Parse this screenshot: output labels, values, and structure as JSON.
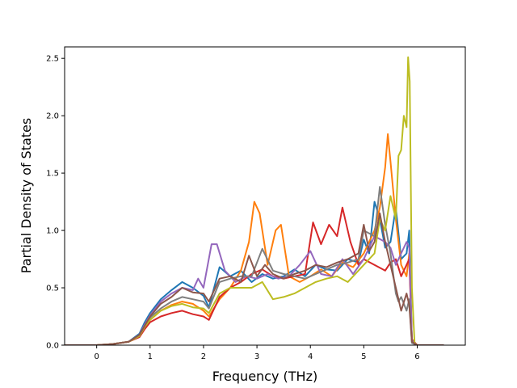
{
  "chart_data": {
    "type": "line",
    "title": "",
    "xlabel": "Frequency (THz)",
    "ylabel": "Partial Density of States",
    "xlim": [
      -0.6,
      6.9
    ],
    "ylim": [
      0.0,
      2.6
    ],
    "xticks": [
      "0",
      "1",
      "2",
      "3",
      "4",
      "5",
      "6"
    ],
    "xtick_values": [
      0,
      1,
      2,
      3,
      4,
      5,
      6
    ],
    "yticks": [
      "0.0",
      "0.5",
      "1.0",
      "1.5",
      "2.0",
      "2.5"
    ],
    "ytick_values": [
      0.0,
      0.5,
      1.0,
      1.5,
      2.0,
      2.5
    ],
    "grid": false,
    "legend": "none",
    "series": [
      {
        "color": "#1f77b4",
        "x": [
          -0.6,
          0.0,
          0.3,
          0.6,
          0.8,
          0.9,
          1.0,
          1.2,
          1.4,
          1.6,
          1.8,
          2.0,
          2.1,
          2.3,
          2.5,
          2.7,
          2.9,
          3.1,
          3.3,
          3.5,
          3.7,
          3.9,
          4.1,
          4.3,
          4.5,
          4.7,
          4.9,
          5.0,
          5.1,
          5.2,
          5.3,
          5.4,
          5.5,
          5.6,
          5.7,
          5.8,
          5.85,
          5.9,
          6.0,
          6.2,
          6.5
        ],
        "y": [
          0.0,
          0.0,
          0.01,
          0.03,
          0.1,
          0.2,
          0.28,
          0.4,
          0.48,
          0.55,
          0.5,
          0.43,
          0.33,
          0.68,
          0.6,
          0.65,
          0.55,
          0.62,
          0.58,
          0.6,
          0.66,
          0.6,
          0.7,
          0.66,
          0.65,
          0.75,
          0.72,
          0.92,
          0.8,
          1.25,
          1.1,
          0.85,
          0.9,
          1.2,
          0.75,
          0.8,
          1.0,
          0.02,
          0.0,
          0.0,
          0.0
        ]
      },
      {
        "color": "#ff7f0e",
        "x": [
          -0.6,
          0.0,
          0.3,
          0.6,
          0.8,
          0.9,
          1.0,
          1.2,
          1.4,
          1.6,
          1.8,
          2.0,
          2.1,
          2.3,
          2.5,
          2.7,
          2.85,
          2.95,
          3.05,
          3.2,
          3.35,
          3.45,
          3.6,
          3.8,
          4.0,
          4.2,
          4.4,
          4.6,
          4.8,
          5.0,
          5.2,
          5.3,
          5.4,
          5.45,
          5.5,
          5.6,
          5.7,
          5.8,
          5.85,
          5.9,
          6.0,
          6.2,
          6.5
        ],
        "y": [
          0.0,
          0.0,
          0.01,
          0.03,
          0.08,
          0.15,
          0.22,
          0.3,
          0.35,
          0.38,
          0.36,
          0.3,
          0.25,
          0.4,
          0.5,
          0.65,
          0.9,
          1.25,
          1.15,
          0.7,
          1.0,
          1.05,
          0.6,
          0.55,
          0.6,
          0.66,
          0.6,
          0.72,
          0.68,
          0.8,
          1.0,
          1.2,
          1.55,
          1.84,
          1.6,
          1.1,
          0.7,
          0.6,
          0.8,
          0.05,
          0.0,
          0.0,
          0.0
        ]
      },
      {
        "color": "#d62728",
        "x": [
          -0.6,
          0.0,
          0.3,
          0.6,
          0.8,
          0.9,
          1.0,
          1.2,
          1.4,
          1.6,
          1.8,
          2.0,
          2.1,
          2.3,
          2.5,
          2.7,
          2.9,
          3.1,
          3.3,
          3.5,
          3.7,
          3.9,
          4.05,
          4.2,
          4.35,
          4.5,
          4.6,
          4.75,
          4.9,
          5.0,
          5.2,
          5.4,
          5.5,
          5.6,
          5.7,
          5.8,
          5.85,
          5.9,
          6.0,
          6.2,
          6.5
        ],
        "y": [
          0.0,
          0.0,
          0.01,
          0.03,
          0.07,
          0.14,
          0.2,
          0.25,
          0.28,
          0.3,
          0.27,
          0.25,
          0.22,
          0.42,
          0.5,
          0.55,
          0.62,
          0.66,
          0.6,
          0.58,
          0.6,
          0.62,
          1.07,
          0.88,
          1.05,
          0.95,
          1.2,
          0.9,
          0.7,
          0.75,
          0.7,
          0.65,
          0.72,
          0.75,
          0.6,
          0.7,
          0.75,
          0.05,
          0.0,
          0.0,
          0.0
        ]
      },
      {
        "color": "#9467bd",
        "x": [
          -0.6,
          0.0,
          0.3,
          0.6,
          0.8,
          0.9,
          1.0,
          1.2,
          1.4,
          1.6,
          1.8,
          1.9,
          2.0,
          2.15,
          2.25,
          2.4,
          2.6,
          2.8,
          3.0,
          3.2,
          3.4,
          3.6,
          3.8,
          4.0,
          4.2,
          4.4,
          4.6,
          4.8,
          5.0,
          5.2,
          5.4,
          5.5,
          5.6,
          5.7,
          5.8,
          5.85,
          5.9,
          6.0,
          6.2,
          6.5
        ],
        "y": [
          0.0,
          0.0,
          0.01,
          0.03,
          0.09,
          0.18,
          0.26,
          0.38,
          0.45,
          0.5,
          0.48,
          0.58,
          0.5,
          0.88,
          0.88,
          0.65,
          0.55,
          0.6,
          0.58,
          0.62,
          0.58,
          0.6,
          0.7,
          0.82,
          0.62,
          0.6,
          0.75,
          0.62,
          0.75,
          0.95,
          0.9,
          0.85,
          0.7,
          0.8,
          0.9,
          0.85,
          0.04,
          0.0,
          0.0,
          0.0
        ]
      },
      {
        "color": "#7f7f7f",
        "x": [
          -0.6,
          0.0,
          0.3,
          0.6,
          0.8,
          0.9,
          1.0,
          1.2,
          1.4,
          1.6,
          1.8,
          2.0,
          2.1,
          2.3,
          2.5,
          2.7,
          2.9,
          3.1,
          3.3,
          3.5,
          3.7,
          3.9,
          4.1,
          4.3,
          4.5,
          4.7,
          4.9,
          5.0,
          5.2,
          5.3,
          5.4,
          5.5,
          5.6,
          5.65,
          5.7,
          5.8,
          5.85,
          5.9,
          6.0,
          6.2,
          6.5
        ],
        "y": [
          0.0,
          0.0,
          0.01,
          0.03,
          0.08,
          0.16,
          0.24,
          0.32,
          0.38,
          0.42,
          0.4,
          0.38,
          0.32,
          0.55,
          0.58,
          0.6,
          0.6,
          0.84,
          0.65,
          0.62,
          0.6,
          0.58,
          0.62,
          0.66,
          0.7,
          0.72,
          0.75,
          1.0,
          0.95,
          1.38,
          1.05,
          0.8,
          0.45,
          0.38,
          0.42,
          0.3,
          0.4,
          0.02,
          0.0,
          0.0,
          0.0
        ]
      },
      {
        "color": "#bcbd22",
        "x": [
          -0.6,
          0.0,
          0.3,
          0.6,
          0.8,
          0.9,
          1.0,
          1.2,
          1.4,
          1.6,
          1.8,
          2.0,
          2.1,
          2.3,
          2.5,
          2.7,
          2.9,
          3.1,
          3.3,
          3.5,
          3.7,
          3.9,
          4.1,
          4.3,
          4.5,
          4.7,
          4.9,
          5.0,
          5.2,
          5.3,
          5.4,
          5.5,
          5.6,
          5.65,
          5.7,
          5.75,
          5.8,
          5.83,
          5.86,
          5.9,
          5.95,
          6.0,
          6.2,
          6.5
        ],
        "y": [
          0.0,
          0.0,
          0.01,
          0.03,
          0.08,
          0.16,
          0.22,
          0.3,
          0.34,
          0.36,
          0.33,
          0.32,
          0.28,
          0.45,
          0.5,
          0.5,
          0.5,
          0.55,
          0.4,
          0.42,
          0.45,
          0.5,
          0.55,
          0.58,
          0.6,
          0.55,
          0.65,
          0.7,
          0.8,
          1.1,
          1.0,
          1.3,
          1.1,
          1.65,
          1.7,
          2.0,
          1.9,
          2.51,
          2.3,
          0.5,
          0.02,
          0.0,
          0.0,
          0.0
        ]
      },
      {
        "color": "#8c564b",
        "x": [
          -0.6,
          0.0,
          0.3,
          0.6,
          0.8,
          0.9,
          1.0,
          1.2,
          1.4,
          1.6,
          1.8,
          2.0,
          2.1,
          2.3,
          2.5,
          2.7,
          2.85,
          3.0,
          3.15,
          3.3,
          3.5,
          3.7,
          3.9,
          4.1,
          4.3,
          4.5,
          4.7,
          4.9,
          5.0,
          5.1,
          5.2,
          5.3,
          5.4,
          5.5,
          5.6,
          5.7,
          5.8,
          5.85,
          5.9,
          6.0,
          6.2,
          6.5
        ],
        "y": [
          0.0,
          0.0,
          0.01,
          0.03,
          0.09,
          0.17,
          0.25,
          0.36,
          0.42,
          0.5,
          0.46,
          0.45,
          0.38,
          0.58,
          0.6,
          0.55,
          0.78,
          0.6,
          0.7,
          0.62,
          0.58,
          0.62,
          0.65,
          0.7,
          0.68,
          0.72,
          0.75,
          0.8,
          1.05,
          0.82,
          0.9,
          1.15,
          0.9,
          0.7,
          0.5,
          0.3,
          0.45,
          0.35,
          0.03,
          0.0,
          0.0,
          0.0
        ]
      }
    ]
  }
}
